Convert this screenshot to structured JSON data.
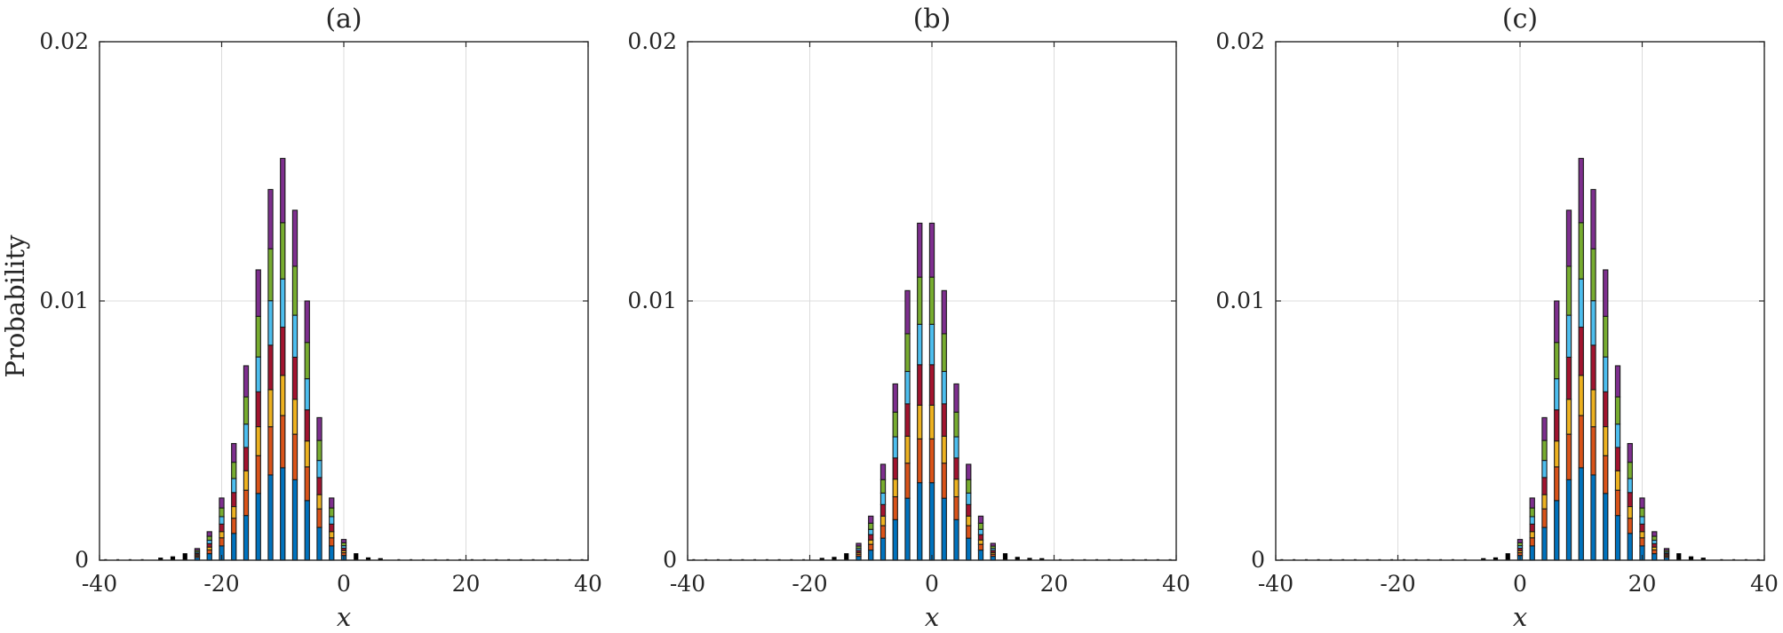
{
  "ylabel": "Probability",
  "colors": {
    "segments": [
      "#0072BD",
      "#D95319",
      "#EDB120",
      "#7E2F8E",
      "#77AC30",
      "#4DBEEE",
      "#A2142F"
    ],
    "grid": "#dcdcdc",
    "axis": "#262626",
    "tail": "#000000"
  },
  "chart_data": [
    {
      "type": "bar",
      "stacked": true,
      "title": "(a)",
      "xlabel": "x",
      "ylabel": "Probability",
      "xlim": [
        -40,
        40
      ],
      "ylim": [
        0,
        0.02
      ],
      "xticks": [
        "-40",
        "-20",
        "0",
        "20",
        "40"
      ],
      "yticks": [
        "0",
        "0.01",
        "0.02"
      ],
      "grid": true,
      "x": [
        -30,
        -28,
        -26,
        -24,
        -22,
        -20,
        -18,
        -16,
        -14,
        -12,
        -10,
        -8,
        -6,
        -4,
        -2,
        0,
        2,
        4,
        6
      ],
      "totals": [
        3e-05,
        8e-05,
        0.0002,
        0.00045,
        0.0011,
        0.0024,
        0.0045,
        0.0075,
        0.0112,
        0.0143,
        0.0155,
        0.0135,
        0.01,
        0.0055,
        0.0024,
        0.0008,
        0.0002,
        4e-05,
        1e-05
      ]
    },
    {
      "type": "bar",
      "stacked": true,
      "title": "(b)",
      "xlabel": "x",
      "ylabel": "",
      "xlim": [
        -40,
        40
      ],
      "ylim": [
        0,
        0.02
      ],
      "xticks": [
        "-40",
        "-20",
        "0",
        "20",
        "40"
      ],
      "yticks": [
        "0",
        "0.01",
        "0.02"
      ],
      "grid": true,
      "x": [
        -18,
        -16,
        -14,
        -12,
        -10,
        -8,
        -6,
        -4,
        -2,
        0,
        2,
        4,
        6,
        8,
        10,
        12,
        14,
        16,
        18
      ],
      "totals": [
        2e-05,
        6e-05,
        0.0002,
        0.00065,
        0.0017,
        0.0037,
        0.0068,
        0.0104,
        0.013,
        0.013,
        0.0104,
        0.0068,
        0.0037,
        0.0017,
        0.00065,
        0.0002,
        6e-05,
        2e-05,
        1e-05
      ]
    },
    {
      "type": "bar",
      "stacked": true,
      "title": "(c)",
      "xlabel": "x",
      "ylabel": "",
      "xlim": [
        -40,
        40
      ],
      "ylim": [
        0,
        0.02
      ],
      "xticks": [
        "-40",
        "-20",
        "0",
        "20",
        "40"
      ],
      "yticks": [
        "0",
        "0.01",
        "0.02"
      ],
      "grid": true,
      "x": [
        -6,
        -4,
        -2,
        0,
        2,
        4,
        6,
        8,
        10,
        12,
        14,
        16,
        18,
        20,
        22,
        24,
        26,
        28,
        30
      ],
      "totals": [
        1e-05,
        4e-05,
        0.0002,
        0.0008,
        0.0024,
        0.0055,
        0.01,
        0.0135,
        0.0155,
        0.0143,
        0.0112,
        0.0075,
        0.0045,
        0.0024,
        0.0011,
        0.00045,
        0.0002,
        8e-05,
        3e-05
      ]
    }
  ]
}
